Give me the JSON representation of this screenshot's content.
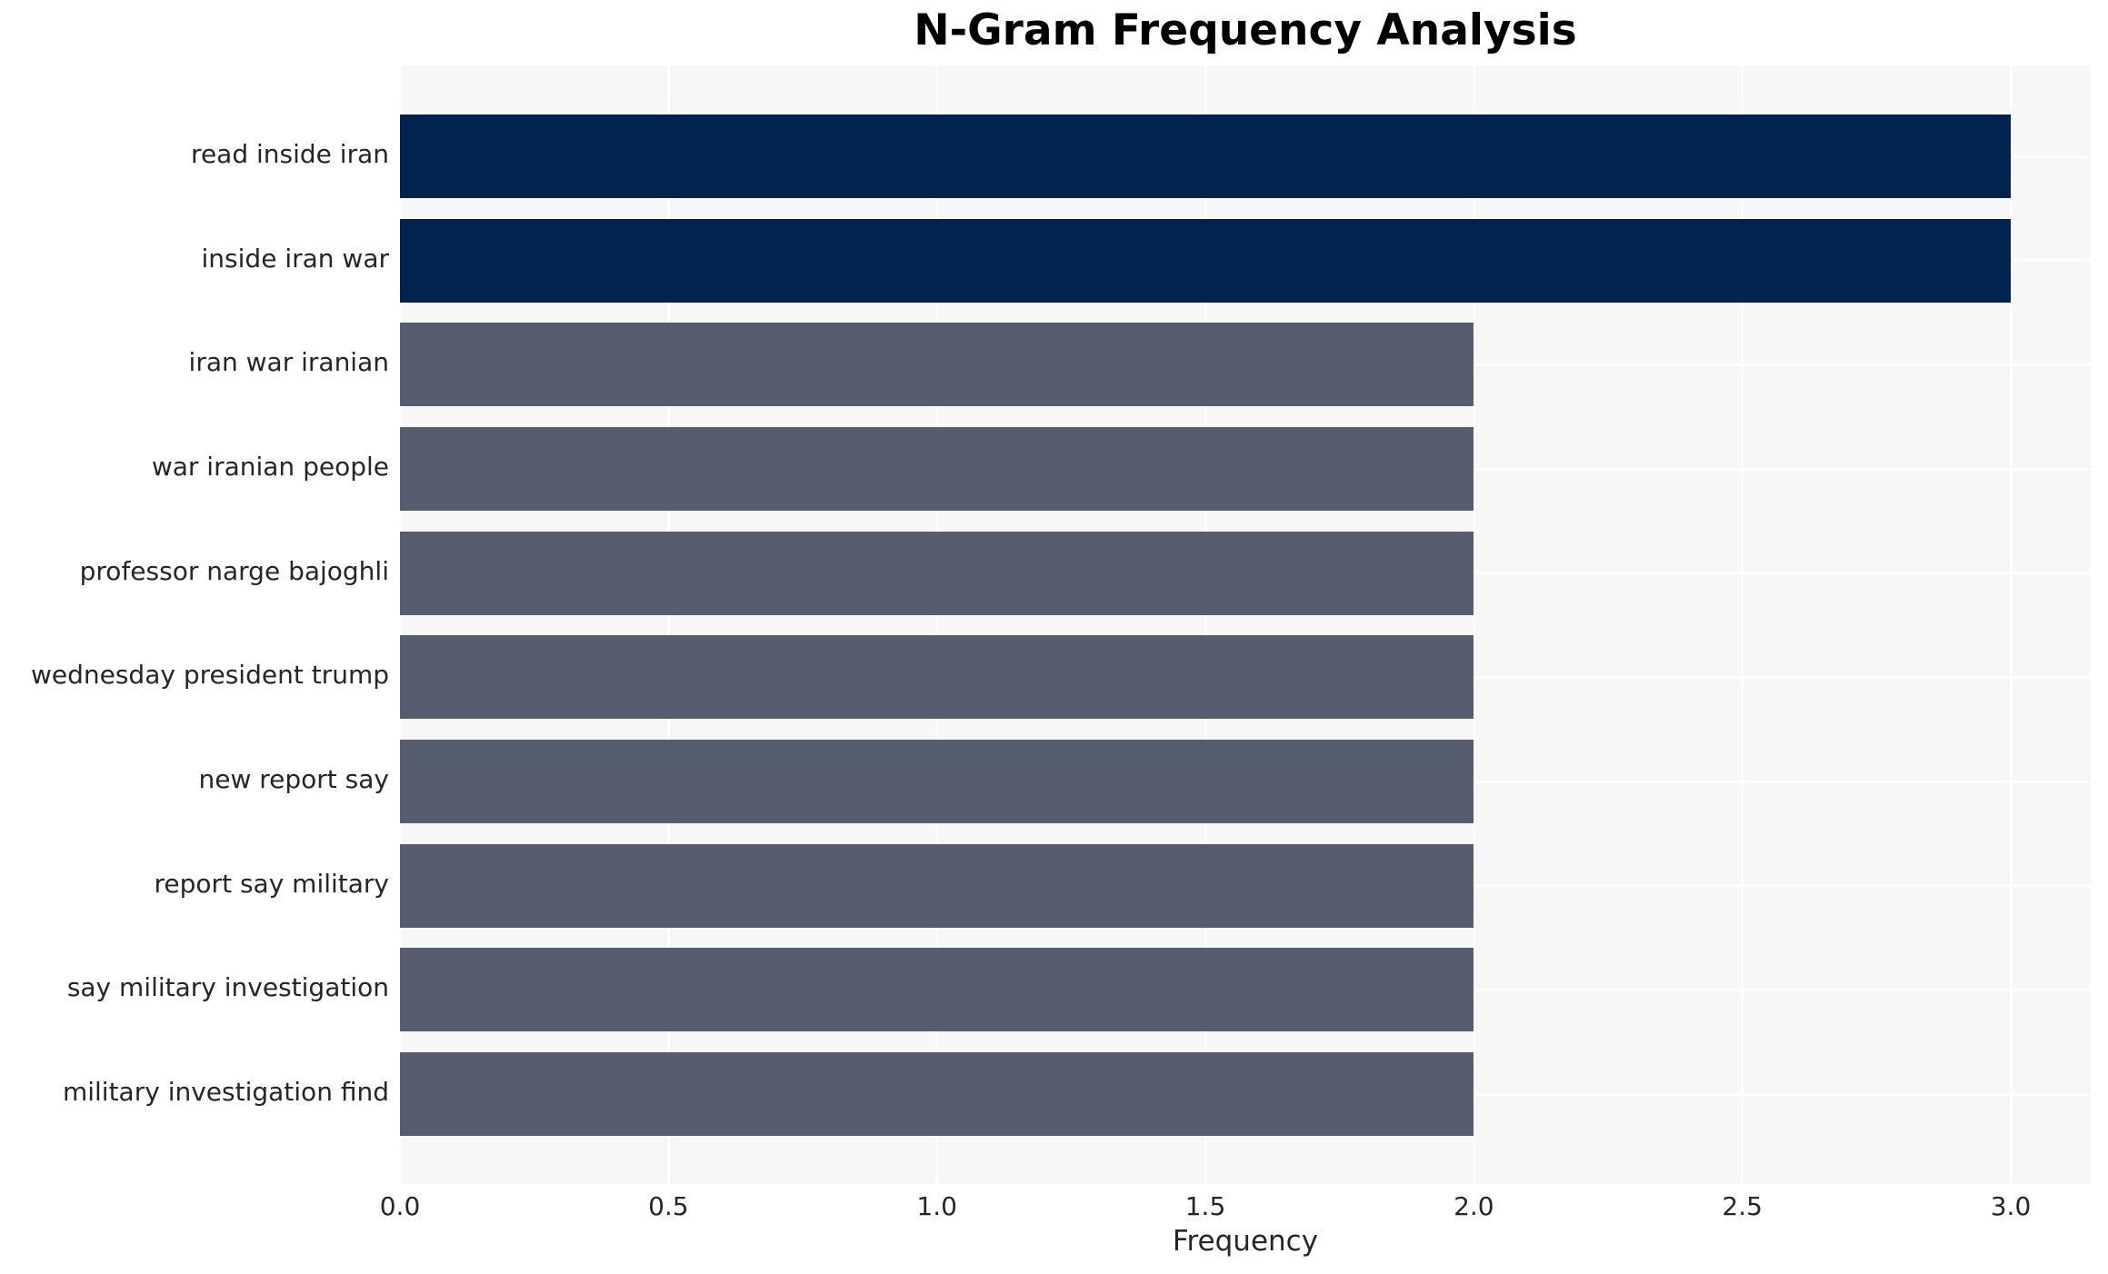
{
  "chart_data": {
    "type": "bar",
    "orientation": "horizontal",
    "title": "N-Gram Frequency Analysis",
    "xlabel": "Frequency",
    "ylabel": "",
    "categories": [
      "read inside iran",
      "inside iran war",
      "iran war iranian",
      "war iranian people",
      "professor narge bajoghli",
      "wednesday president trump",
      "new report say",
      "report say military",
      "say military investigation",
      "military investigation find"
    ],
    "values": [
      3,
      3,
      2,
      2,
      2,
      2,
      2,
      2,
      2,
      2
    ],
    "bar_colors": [
      "#02234d",
      "#02234d",
      "#565d6e",
      "#565d6e",
      "#565d6e",
      "#565d6e",
      "#565d6e",
      "#565d6e",
      "#565d6e",
      "#565d6e"
    ],
    "x_ticks": [
      0.0,
      0.5,
      1.0,
      1.5,
      2.0,
      2.5,
      3.0
    ],
    "x_tick_labels": [
      "0.0",
      "0.5",
      "1.0",
      "1.5",
      "2.0",
      "2.5",
      "3.0"
    ],
    "xlim": [
      0,
      3.148
    ],
    "grid": true,
    "legend": false,
    "colors": {
      "plot_background": "#f7f7f7",
      "figure_background": "#ffffff",
      "gridline": "#ffffff",
      "text": "#262626",
      "title": "#000000",
      "bar_high": "#02234d",
      "bar_low": "#565d6e"
    }
  }
}
